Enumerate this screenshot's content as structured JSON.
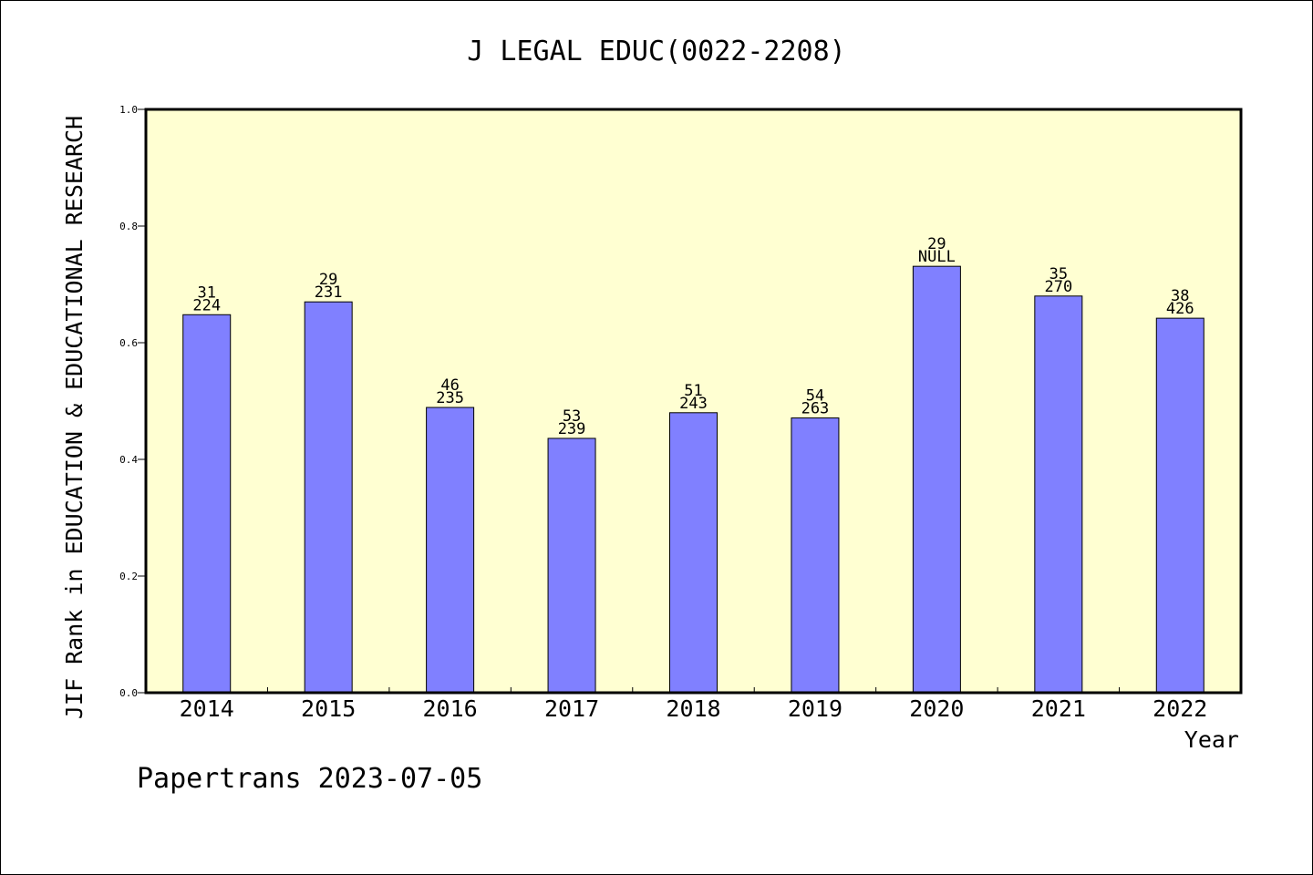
{
  "chart_data": {
    "type": "bar",
    "title": "J LEGAL EDUC(0022-2208)",
    "xlabel": "Year",
    "ylabel": "JIF Rank in EDUCATION & EDUCATIONAL RESEARCH",
    "ylim": [
      0,
      1.0
    ],
    "yticks": [
      "0.0",
      "0.2",
      "0.4",
      "0.6",
      "0.8",
      "1.0"
    ],
    "categories": [
      "2014",
      "2015",
      "2016",
      "2017",
      "2018",
      "2019",
      "2020",
      "2021",
      "2022"
    ],
    "values": [
      0.648,
      0.67,
      0.489,
      0.436,
      0.48,
      0.471,
      0.731,
      0.68,
      0.642
    ],
    "labels_top": [
      "31",
      "29",
      "46",
      "53",
      "51",
      "54",
      "29",
      "35",
      "38"
    ],
    "labels_bottom": [
      "224",
      "231",
      "235",
      "239",
      "243",
      "263",
      "NULL",
      "270",
      "426"
    ],
    "bar_color": "#8080ff",
    "plot_background": "#ffffd2",
    "grid": false,
    "legend": "none"
  },
  "footer": "Papertrans 2023-07-05"
}
